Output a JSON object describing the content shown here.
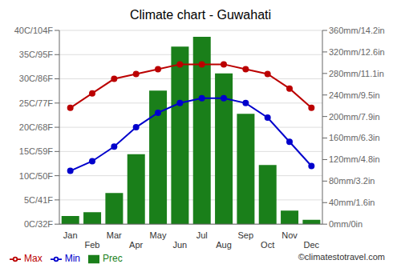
{
  "chart_data": {
    "type": "bar",
    "title": "Climate chart - Guwahati",
    "categories": [
      "Jan",
      "Feb",
      "Mar",
      "Apr",
      "May",
      "Jun",
      "Jul",
      "Aug",
      "Sep",
      "Oct",
      "Nov",
      "Dec"
    ],
    "series": [
      {
        "name": "Prec",
        "type": "bar",
        "color": "#1a7f1a",
        "axis": "y2",
        "values": [
          15,
          22,
          58,
          130,
          248,
          330,
          348,
          280,
          205,
          110,
          25,
          8
        ]
      },
      {
        "name": "Min",
        "type": "line",
        "color": "#0000cc",
        "marker": "circle",
        "values": [
          11,
          13,
          16,
          20,
          23,
          25,
          26,
          26,
          25,
          22,
          17,
          12
        ]
      },
      {
        "name": "Max",
        "type": "line",
        "color": "#bb0000",
        "marker": "circle",
        "values": [
          24,
          27,
          30,
          31,
          32,
          33,
          33,
          33,
          32,
          31,
          28,
          24
        ]
      }
    ],
    "ylim": [
      0,
      40
    ],
    "yticks": [
      {
        "value": 0,
        "label": "0C/32F"
      },
      {
        "value": 5,
        "label": "5C/41F"
      },
      {
        "value": 10,
        "label": "10C/50F"
      },
      {
        "value": 15,
        "label": "15C/59F"
      },
      {
        "value": 20,
        "label": "20C/68F"
      },
      {
        "value": 25,
        "label": "25C/77F"
      },
      {
        "value": 30,
        "label": "30C/86F"
      },
      {
        "value": 35,
        "label": "35C/95F"
      },
      {
        "value": 40,
        "label": "40C/104F"
      }
    ],
    "y2lim": [
      0,
      360
    ],
    "y2ticks": [
      {
        "value": 0,
        "label": "0mm/0in"
      },
      {
        "value": 40,
        "label": "40mm/1.6in"
      },
      {
        "value": 80,
        "label": "80mm/3.2in"
      },
      {
        "value": 120,
        "label": "120mm/4.8in"
      },
      {
        "value": 160,
        "label": "160mm/6.3in"
      },
      {
        "value": 200,
        "label": "200mm/7.9in"
      },
      {
        "value": 240,
        "label": "240mm/9.5in"
      },
      {
        "value": 280,
        "label": "280mm/11.1in"
      },
      {
        "value": 320,
        "label": "320mm/12.6in"
      },
      {
        "value": 360,
        "label": "360mm/14.2in"
      }
    ],
    "grid": true,
    "legend": "lower left",
    "annotations": [
      "©climatestotravel.com"
    ]
  }
}
